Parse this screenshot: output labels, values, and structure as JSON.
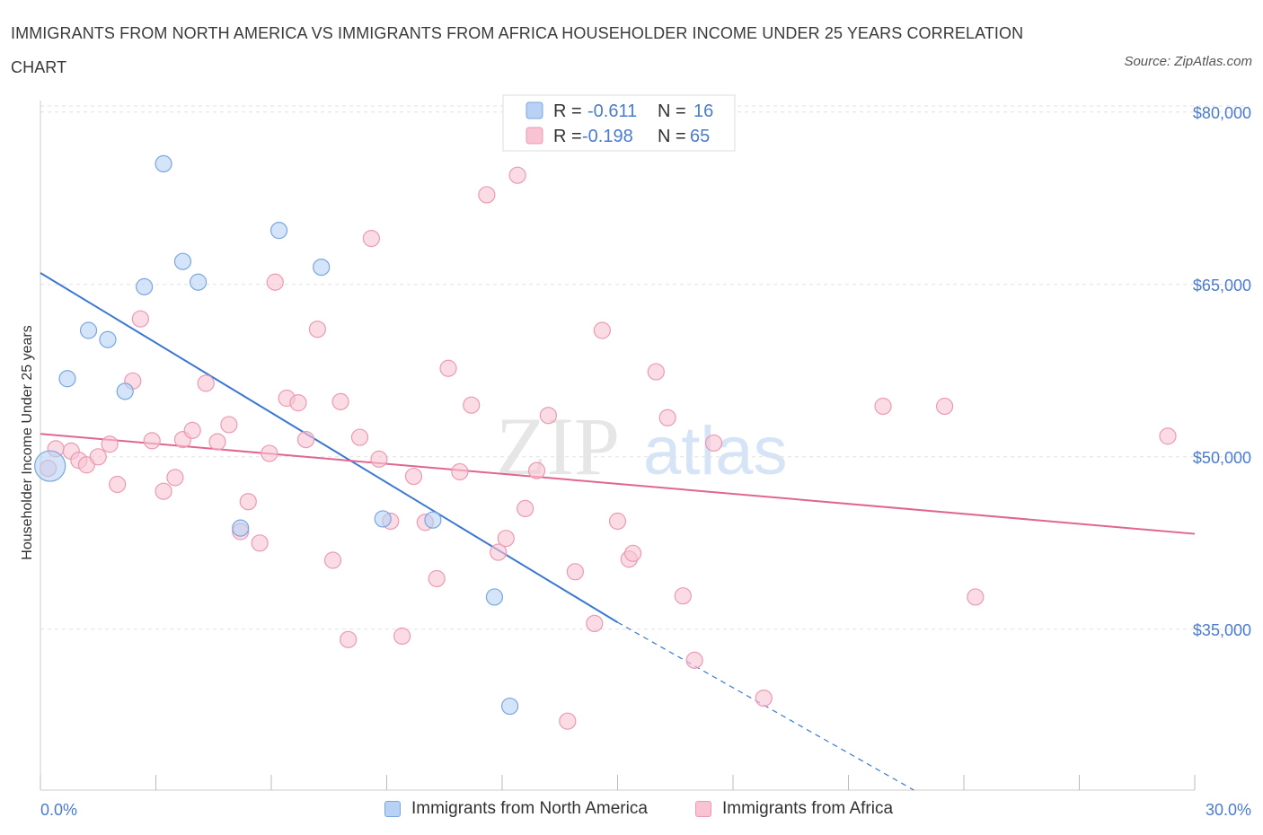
{
  "title": "IMMIGRANTS FROM NORTH AMERICA VS IMMIGRANTS FROM AFRICA HOUSEHOLDER INCOME UNDER 25 YEARS CORRELATION CHART",
  "source": "Source: ZipAtlas.com",
  "watermark": {
    "zip": "ZIP",
    "atlas": "atlas"
  },
  "colors": {
    "north_america_fill": "#b8d2f5",
    "north_america_stroke": "#7aa6e0",
    "north_america_line": "#3a78d4",
    "africa_fill": "#f8c4d4",
    "africa_stroke": "#eb9ab4",
    "africa_line": "#e06690",
    "value_text": "#4a7bd0"
  },
  "legend": {
    "r_label": "R =",
    "n_label": "N =",
    "north_america": {
      "r": "-0.611",
      "n": "16"
    },
    "africa": {
      "r": "-0.198",
      "n": "65"
    }
  },
  "chart_data": {
    "type": "scatter",
    "ylabel": "Householder Income Under 25 years",
    "x_tick_labels": [
      "0.0%",
      "30.0%"
    ],
    "y_tick_labels": [
      "$80,000",
      "$65,000",
      "$50,000",
      "$35,000"
    ],
    "y_ticks": [
      80000,
      65000,
      50000,
      35000
    ],
    "xlim": [
      0,
      30
    ],
    "ylim": [
      21000,
      81000
    ],
    "grid": true,
    "legend_position": "top-center",
    "series": [
      {
        "name": "Immigrants from North America",
        "r": -0.611,
        "n": 16,
        "points": [
          {
            "x": 0.25,
            "y": 49200,
            "large": true
          },
          {
            "x": 0.7,
            "y": 56800
          },
          {
            "x": 1.25,
            "y": 61000
          },
          {
            "x": 1.75,
            "y": 60200
          },
          {
            "x": 2.2,
            "y": 55700
          },
          {
            "x": 2.7,
            "y": 64800
          },
          {
            "x": 3.2,
            "y": 75500
          },
          {
            "x": 3.7,
            "y": 67000
          },
          {
            "x": 4.1,
            "y": 65200
          },
          {
            "x": 5.2,
            "y": 43800
          },
          {
            "x": 6.2,
            "y": 69700
          },
          {
            "x": 7.3,
            "y": 66500
          },
          {
            "x": 8.9,
            "y": 44600
          },
          {
            "x": 10.2,
            "y": 44500
          },
          {
            "x": 11.8,
            "y": 37800
          },
          {
            "x": 12.2,
            "y": 28300
          }
        ],
        "trend": {
          "x_start": 0,
          "y_start": 66000,
          "x_solid_end": 15.0,
          "y_solid_end": 35600,
          "x_dash_end": 22.7,
          "y_dash_end": 21000
        }
      },
      {
        "name": "Immigrants from Africa",
        "r": -0.198,
        "n": 65,
        "points": [
          {
            "x": 0.2,
            "y": 49000
          },
          {
            "x": 0.4,
            "y": 50700
          },
          {
            "x": 0.8,
            "y": 50500
          },
          {
            "x": 1.0,
            "y": 49700
          },
          {
            "x": 1.2,
            "y": 49300
          },
          {
            "x": 1.5,
            "y": 50000
          },
          {
            "x": 1.8,
            "y": 51100
          },
          {
            "x": 2.0,
            "y": 47600
          },
          {
            "x": 2.4,
            "y": 56600
          },
          {
            "x": 2.6,
            "y": 62000
          },
          {
            "x": 2.9,
            "y": 51400
          },
          {
            "x": 3.2,
            "y": 47000
          },
          {
            "x": 3.5,
            "y": 48200
          },
          {
            "x": 3.7,
            "y": 51500
          },
          {
            "x": 3.95,
            "y": 52300
          },
          {
            "x": 4.3,
            "y": 56400
          },
          {
            "x": 4.6,
            "y": 51300
          },
          {
            "x": 4.9,
            "y": 52800
          },
          {
            "x": 5.2,
            "y": 43500
          },
          {
            "x": 5.4,
            "y": 46100
          },
          {
            "x": 5.7,
            "y": 42500
          },
          {
            "x": 5.95,
            "y": 50300
          },
          {
            "x": 6.1,
            "y": 65200
          },
          {
            "x": 6.4,
            "y": 55100
          },
          {
            "x": 6.7,
            "y": 54700
          },
          {
            "x": 6.9,
            "y": 51500
          },
          {
            "x": 7.2,
            "y": 61100
          },
          {
            "x": 7.6,
            "y": 41000
          },
          {
            "x": 7.8,
            "y": 54800
          },
          {
            "x": 8.0,
            "y": 34100
          },
          {
            "x": 8.3,
            "y": 51700
          },
          {
            "x": 8.6,
            "y": 69000
          },
          {
            "x": 8.8,
            "y": 49800
          },
          {
            "x": 9.1,
            "y": 44400
          },
          {
            "x": 9.4,
            "y": 34400
          },
          {
            "x": 9.7,
            "y": 48300
          },
          {
            "x": 10.0,
            "y": 44300
          },
          {
            "x": 10.3,
            "y": 39400
          },
          {
            "x": 10.6,
            "y": 57700
          },
          {
            "x": 10.9,
            "y": 48700
          },
          {
            "x": 11.2,
            "y": 54500
          },
          {
            "x": 11.6,
            "y": 72800
          },
          {
            "x": 11.9,
            "y": 41700
          },
          {
            "x": 12.1,
            "y": 42900
          },
          {
            "x": 12.4,
            "y": 74500
          },
          {
            "x": 12.6,
            "y": 45500
          },
          {
            "x": 12.9,
            "y": 48800
          },
          {
            "x": 13.2,
            "y": 53600
          },
          {
            "x": 13.7,
            "y": 27000
          },
          {
            "x": 13.9,
            "y": 40000
          },
          {
            "x": 14.4,
            "y": 35500
          },
          {
            "x": 14.6,
            "y": 61000
          },
          {
            "x": 15.0,
            "y": 44400
          },
          {
            "x": 15.3,
            "y": 41100
          },
          {
            "x": 15.4,
            "y": 41600
          },
          {
            "x": 16.0,
            "y": 57400
          },
          {
            "x": 16.3,
            "y": 53400
          },
          {
            "x": 16.7,
            "y": 37900
          },
          {
            "x": 17.0,
            "y": 32300
          },
          {
            "x": 17.5,
            "y": 51200
          },
          {
            "x": 18.8,
            "y": 29000
          },
          {
            "x": 21.9,
            "y": 54400
          },
          {
            "x": 23.5,
            "y": 54400
          },
          {
            "x": 24.3,
            "y": 37800
          },
          {
            "x": 29.3,
            "y": 51800
          }
        ],
        "trend": {
          "x_start": 0,
          "y_start": 52000,
          "x_solid_end": 30.0,
          "y_solid_end": 43300
        }
      }
    ]
  }
}
